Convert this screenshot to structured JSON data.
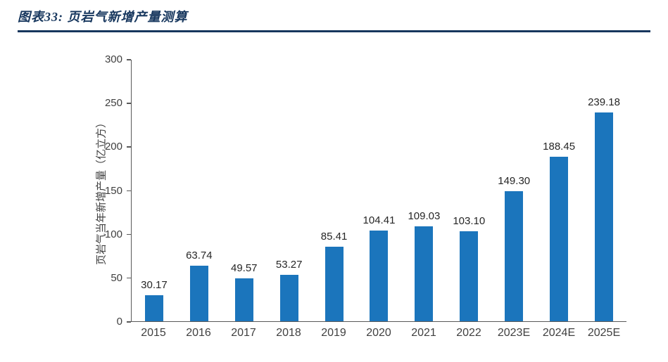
{
  "header": {
    "title": "图表33: 页岩气新增产量测算"
  },
  "chart_data": {
    "type": "bar",
    "title": "页岩气新增产量测算",
    "categories": [
      "2015",
      "2016",
      "2017",
      "2018",
      "2019",
      "2020",
      "2021",
      "2022",
      "2023E",
      "2024E",
      "2025E"
    ],
    "values": [
      30.17,
      63.74,
      49.57,
      53.27,
      85.41,
      104.41,
      109.03,
      103.1,
      149.3,
      188.45,
      239.18
    ],
    "value_labels": [
      "30.17",
      "63.74",
      "49.57",
      "53.27",
      "85.41",
      "104.41",
      "109.03",
      "103.10",
      "149.30",
      "188.45",
      "239.18"
    ],
    "xlabel": "",
    "ylabel": "页岩气当年新增产量（亿立方）",
    "ylim": [
      0,
      300
    ],
    "yticks": [
      0,
      50,
      100,
      150,
      200,
      250,
      300
    ],
    "grid": false,
    "legend": "none",
    "bar_color": "#1B75BC",
    "colors": {
      "title": "#17375E",
      "axis_line": "#595959",
      "axis_text": "#404040",
      "value_label": "#262626"
    }
  }
}
